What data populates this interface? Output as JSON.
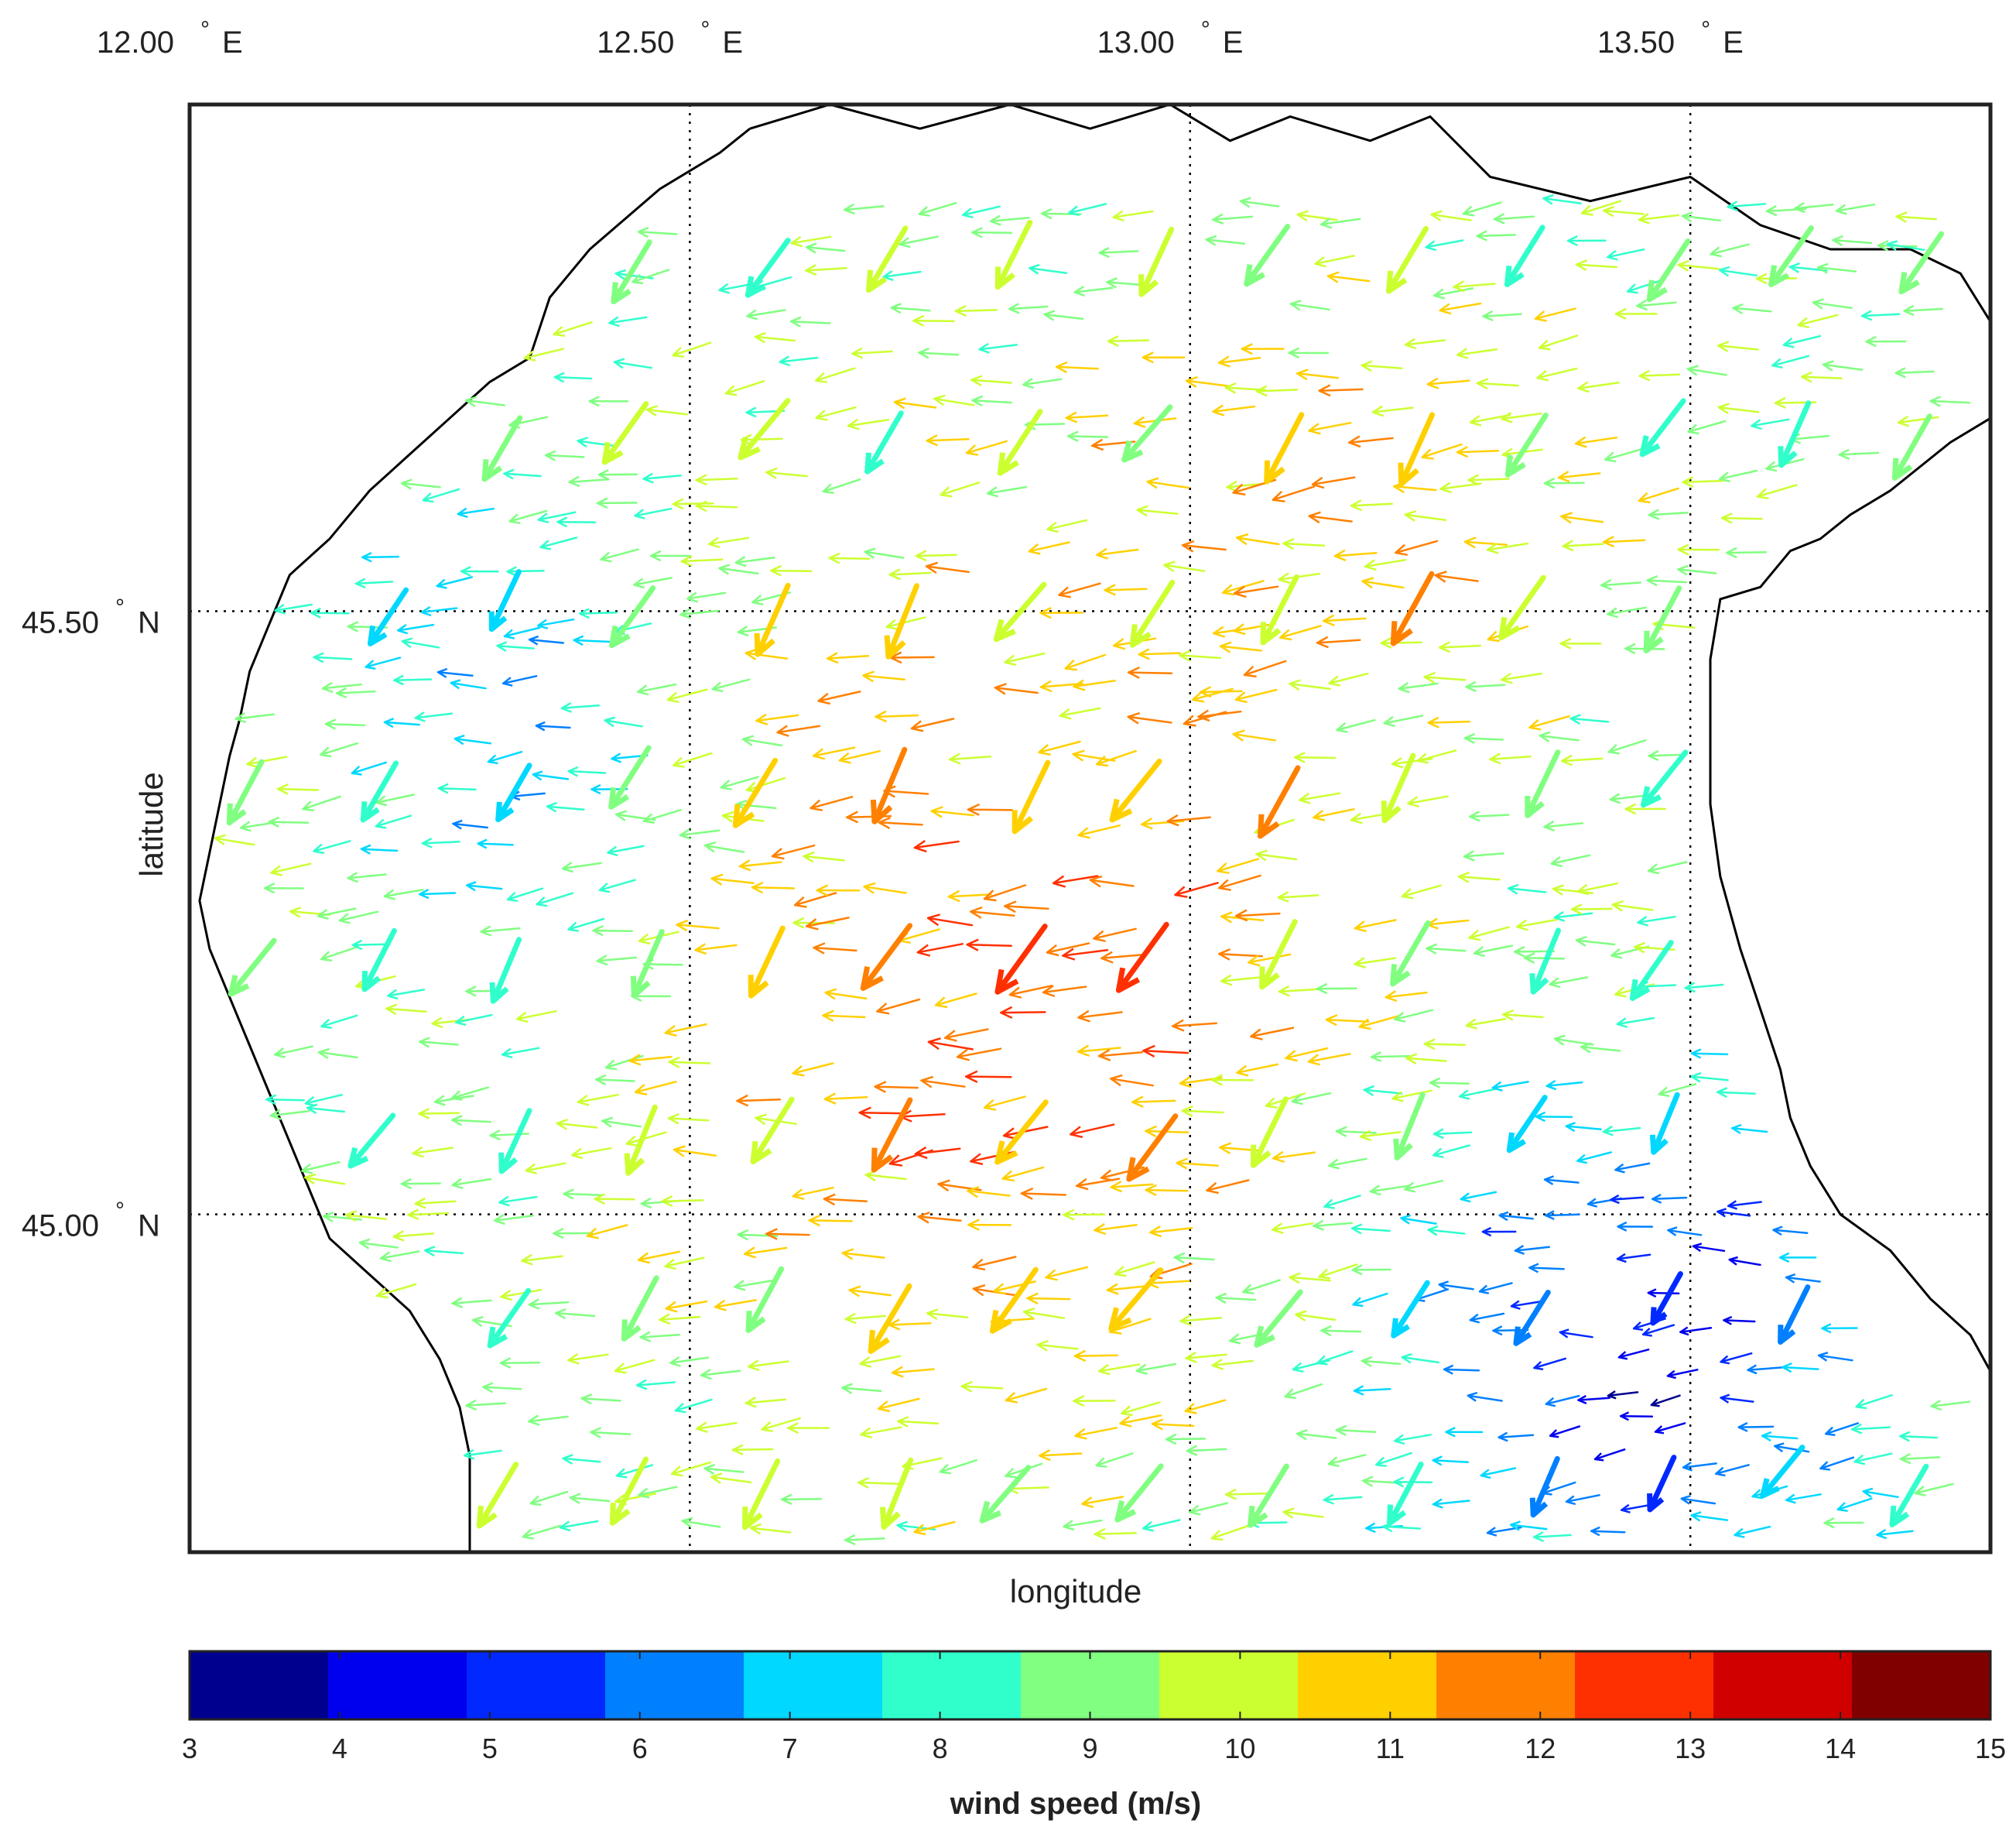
{
  "chart_data": {
    "type": "quiver-map",
    "xlabel": "longitude",
    "ylabel": "latitude",
    "lon_range": [
      12.0,
      13.8
    ],
    "lat_range": [
      44.72,
      45.92
    ],
    "lon_ticks": [
      {
        "value": 12.0,
        "num": "12.00",
        "deg": "°",
        "hemi": "E"
      },
      {
        "value": 12.5,
        "num": "12.50",
        "deg": "°",
        "hemi": "E"
      },
      {
        "value": 13.0,
        "num": "13.00",
        "deg": "°",
        "hemi": "E"
      },
      {
        "value": 13.5,
        "num": "13.50",
        "deg": "°",
        "hemi": "E"
      }
    ],
    "lat_ticks": [
      {
        "value": 45.5,
        "num": "45.50",
        "deg": "°",
        "hemi": "N"
      },
      {
        "value": 45.0,
        "num": "45.00",
        "deg": "°",
        "hemi": "N"
      }
    ],
    "colorbar": {
      "label": "wind speed (m/s)",
      "range": [
        3,
        15
      ],
      "ticks": [
        "3",
        "4",
        "5",
        "6",
        "7",
        "8",
        "9",
        "10",
        "11",
        "12",
        "13",
        "14",
        "15"
      ],
      "colors": [
        "#00008f",
        "#0000ee",
        "#0028ff",
        "#0080ff",
        "#00d8ff",
        "#30ffcc",
        "#80ff80",
        "#ccff30",
        "#ffd000",
        "#ff8000",
        "#ff3000",
        "#d00000",
        "#800000"
      ]
    },
    "coastline": [
      [
        12.56,
        45.9
      ],
      [
        12.64,
        45.92
      ],
      [
        12.73,
        45.9
      ],
      [
        12.82,
        45.92
      ],
      [
        12.9,
        45.9
      ],
      [
        12.98,
        45.92
      ],
      [
        13.04,
        45.89
      ],
      [
        13.1,
        45.91
      ],
      [
        13.18,
        45.89
      ],
      [
        13.24,
        45.91
      ],
      [
        13.3,
        45.86
      ],
      [
        13.4,
        45.84
      ],
      [
        13.5,
        45.86
      ],
      [
        13.57,
        45.82
      ],
      [
        13.64,
        45.8
      ],
      [
        13.72,
        45.8
      ],
      [
        13.77,
        45.78
      ],
      [
        13.8,
        45.74
      ],
      [
        13.8,
        45.66
      ],
      [
        13.76,
        45.64
      ],
      [
        13.73,
        45.62
      ],
      [
        13.7,
        45.6
      ],
      [
        13.66,
        45.58
      ],
      [
        13.63,
        45.56
      ],
      [
        13.6,
        45.55
      ],
      [
        13.57,
        45.52
      ],
      [
        13.53,
        45.51
      ],
      [
        13.52,
        45.46
      ],
      [
        13.52,
        45.4
      ],
      [
        13.52,
        45.34
      ],
      [
        13.53,
        45.28
      ],
      [
        13.55,
        45.22
      ],
      [
        13.57,
        45.17
      ],
      [
        13.59,
        45.12
      ],
      [
        13.6,
        45.08
      ],
      [
        13.62,
        45.04
      ],
      [
        13.65,
        45.0
      ],
      [
        13.7,
        44.97
      ],
      [
        13.74,
        44.93
      ],
      [
        13.78,
        44.9
      ],
      [
        13.8,
        44.87
      ],
      [
        13.8,
        44.72
      ]
    ],
    "west_coastline": [
      [
        12.56,
        45.9
      ],
      [
        12.53,
        45.88
      ],
      [
        12.47,
        45.85
      ],
      [
        12.4,
        45.8
      ],
      [
        12.36,
        45.76
      ],
      [
        12.34,
        45.71
      ],
      [
        12.3,
        45.69
      ],
      [
        12.26,
        45.66
      ],
      [
        12.22,
        45.63
      ],
      [
        12.18,
        45.6
      ],
      [
        12.14,
        45.56
      ],
      [
        12.1,
        45.53
      ],
      [
        12.08,
        45.49
      ],
      [
        12.06,
        45.45
      ],
      [
        12.05,
        45.41
      ],
      [
        12.04,
        45.38
      ],
      [
        12.03,
        45.34
      ],
      [
        12.02,
        45.3
      ],
      [
        12.01,
        45.26
      ],
      [
        12.02,
        45.22
      ],
      [
        12.04,
        45.18
      ],
      [
        12.06,
        45.14
      ],
      [
        12.08,
        45.1
      ],
      [
        12.1,
        45.06
      ],
      [
        12.12,
        45.02
      ],
      [
        12.14,
        44.98
      ],
      [
        12.18,
        44.95
      ],
      [
        12.22,
        44.92
      ],
      [
        12.25,
        44.88
      ],
      [
        12.27,
        44.84
      ],
      [
        12.28,
        44.8
      ],
      [
        12.28,
        44.76
      ],
      [
        12.28,
        44.72
      ]
    ],
    "vectors_scale_note": "arrows point toward SW/W; length and color encode wind speed"
  }
}
